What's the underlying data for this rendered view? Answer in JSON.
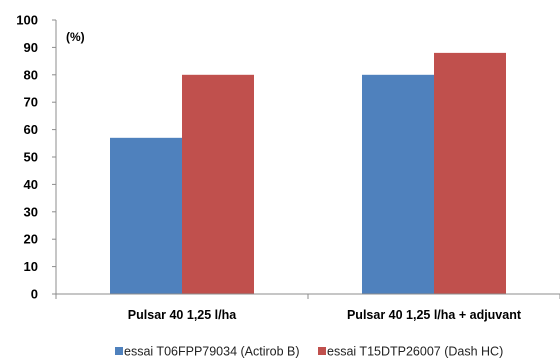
{
  "chart_data": {
    "type": "bar",
    "unit_label": "(%)",
    "categories": [
      "Pulsar 40 1,25 l/ha",
      "Pulsar 40 1,25 l/ha + adjuvant"
    ],
    "series": [
      {
        "name": "essai T06FPP79034 (Actirob B)",
        "values": [
          57,
          80
        ],
        "color": "#4f81bd"
      },
      {
        "name": "essai T15DTP26007 (Dash HC)",
        "values": [
          80,
          88
        ],
        "color": "#c0504d"
      }
    ],
    "yticks": [
      0,
      10,
      20,
      30,
      40,
      50,
      60,
      70,
      80,
      90,
      100
    ],
    "ylim": [
      0,
      100
    ],
    "grid": false,
    "legend_position": "bottom"
  }
}
